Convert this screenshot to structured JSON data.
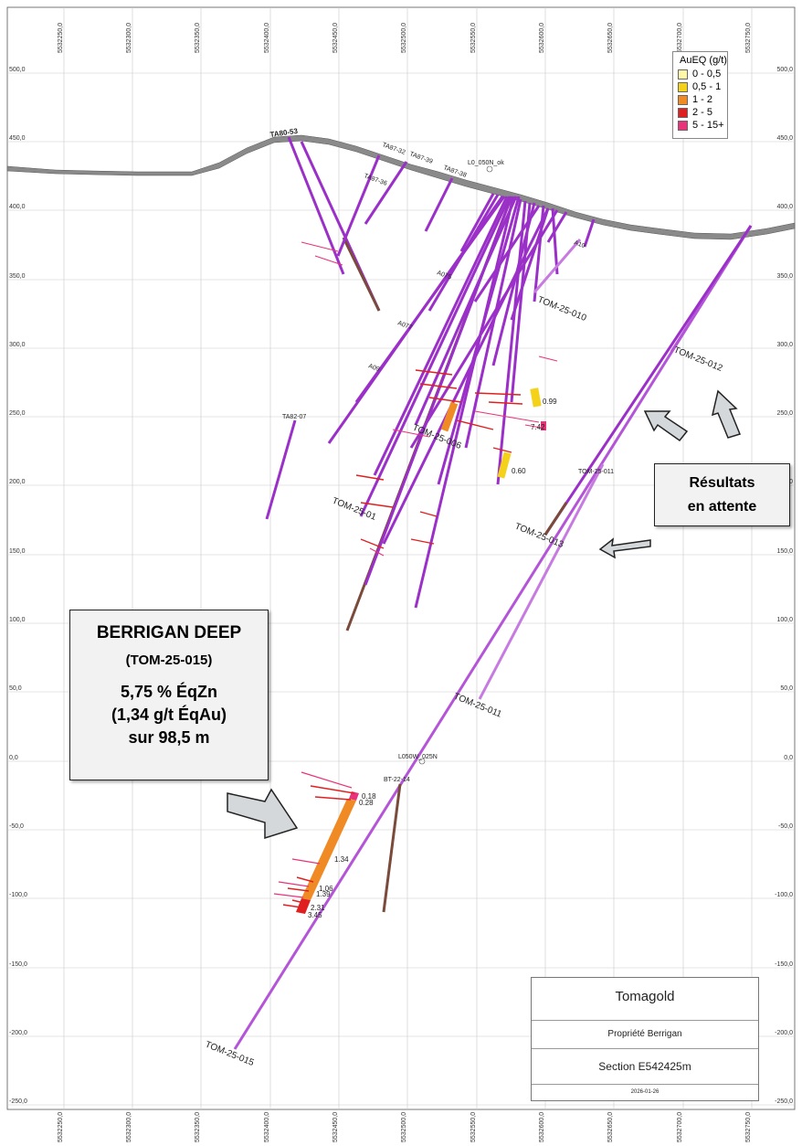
{
  "easting_ticks": [
    "5532250,0",
    "5532300,0",
    "5532350,0",
    "5532400,0",
    "5532450,0",
    "5532500,0",
    "5532550,0",
    "5532600,0",
    "5532650,0",
    "5532700,0",
    "5532750,0"
  ],
  "elevation_ticks": [
    "500,0",
    "450,0",
    "400,0",
    "350,0",
    "300,0",
    "250,0",
    "200,0",
    "150,0",
    "100,0",
    "50,0",
    "0,0",
    "-50,0",
    "-100,0",
    "-150,0",
    "-200,0",
    "-250,0"
  ],
  "legend": {
    "title": "AuEQ (g/t)",
    "items": [
      {
        "label": "0 - 0,5",
        "color": "#fff7a8"
      },
      {
        "label": "0,5 - 1",
        "color": "#f5d21a"
      },
      {
        "label": "1 - 2",
        "color": "#f08a24"
      },
      {
        "label": "2 - 5",
        "color": "#e02020"
      },
      {
        "label": "5 - 15+",
        "color": "#e8337a"
      }
    ]
  },
  "colors": {
    "hole_main": "#9b30c8",
    "hole_light": "#c77be0",
    "hole_brown": "#7a4a3a",
    "topography": "#777777",
    "arrow_fill": "#d4d8da"
  },
  "hole_labels": {
    "tom015": "TOM-25-015",
    "tom011": "TOM-25-011",
    "tom011b": "TOM-25-011",
    "tom012": "TOM-25-012",
    "tom010": "TOM-25-010",
    "tom013": "TOM-25-013",
    "tom01x": "TOM-25-01",
    "tom006": "TOM-25-006",
    "ta8207": "TA82-07",
    "ta8736": "TA87-36",
    "ta8738": "TA87-38",
    "ta8732": "TA87-32",
    "ta8739": "TA87-39",
    "ta8753": "TA80-53",
    "l0050n": "L0_050N_ok",
    "l050w": "L050W_025N",
    "bt2214": "BT-22-14",
    "a09": "A09",
    "a077": "A077",
    "a075": "A075",
    "a10": "A10"
  },
  "assays": {
    "a099": "0.99",
    "a742": "7.42",
    "a060": "0.60",
    "a018": "0.18",
    "a028": "0.28",
    "a134": "1.34",
    "a106": "1.06",
    "a139": "1.39",
    "a231": "2.31",
    "a345": "3.45"
  },
  "callout_main": {
    "title": "BERRIGAN DEEP",
    "hole": "(TOM-25-015)",
    "grade_zn": "5,75 % ÉqZn",
    "grade_au": "(1,34 g/t ÉqAu)",
    "interval": "sur 98,5 m"
  },
  "callout_pending": {
    "line1": "Résultats",
    "line2": "en attente"
  },
  "title_block": {
    "company": "Tomagold",
    "property": "Propriété Berrigan",
    "section": "Section E542425m",
    "date": "2026-01-26"
  }
}
